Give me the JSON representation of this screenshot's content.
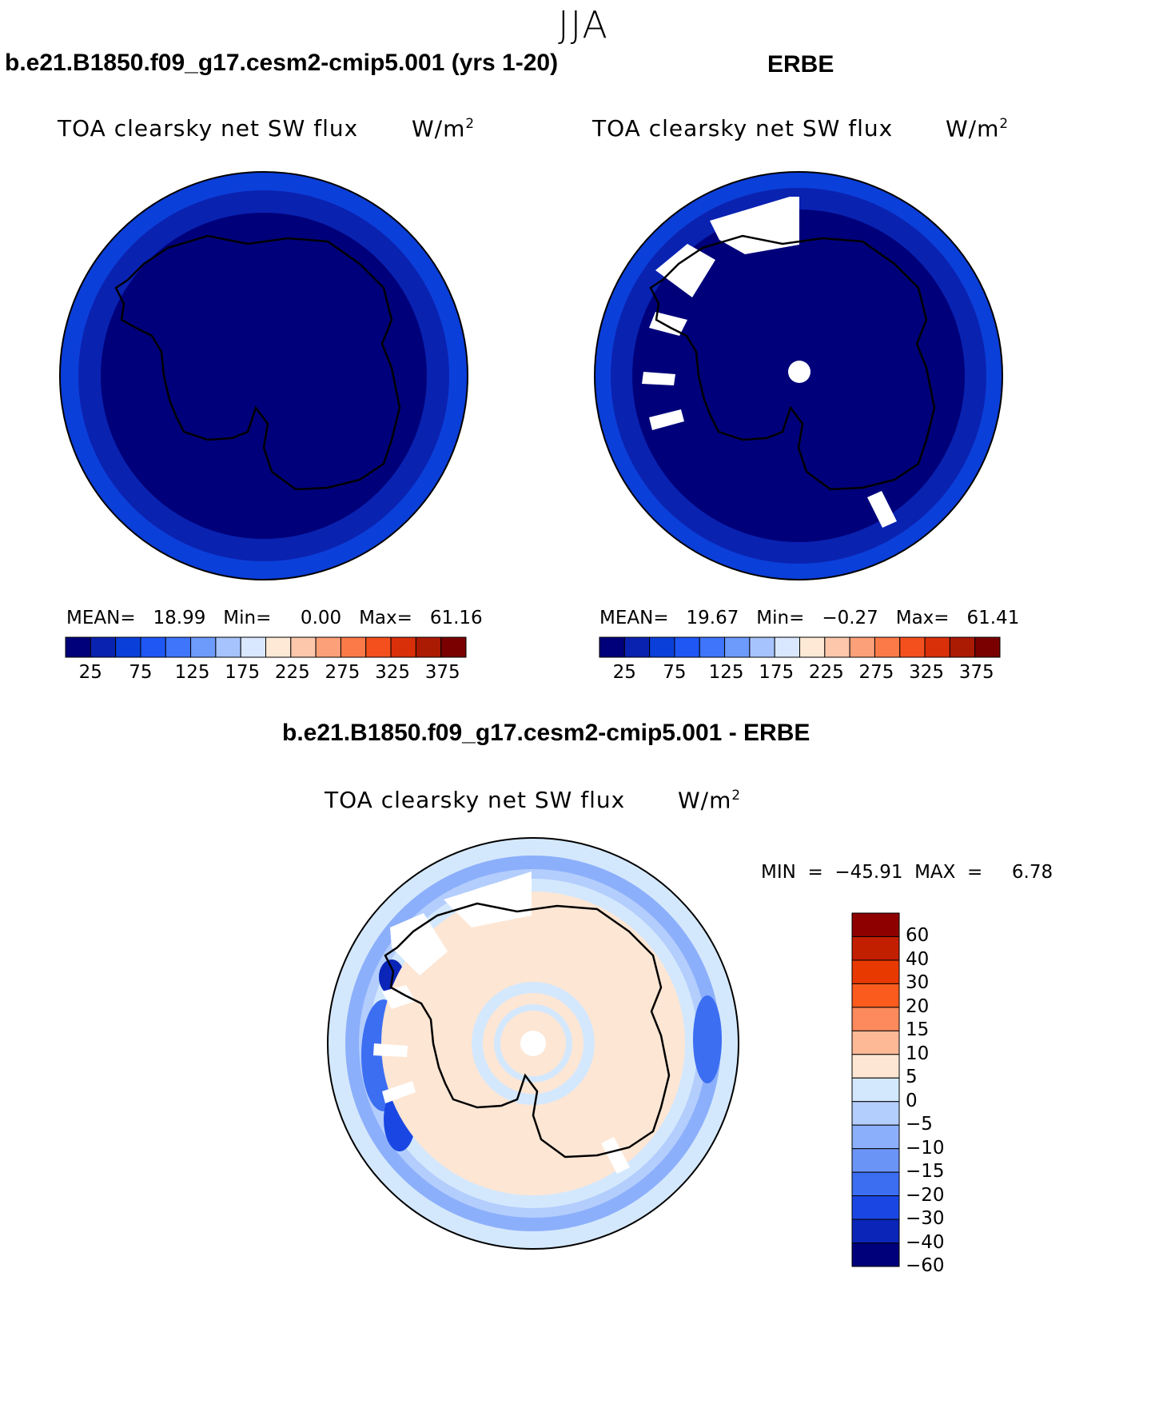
{
  "figure": {
    "season": "JJA",
    "diff_title": "b.e21.B1850.f09_g17.cesm2-cmip5.001 - ERBE"
  },
  "panels": [
    {
      "title": "b.e21.B1850.f09_g17.cesm2-cmip5.001 (yrs 1-20)",
      "field": "TOA clearsky net SW flux",
      "units": "W/m",
      "units_exp": "2",
      "stats": "MEAN=   18.99   Min=     0.00   Max=   61.16"
    },
    {
      "title": "ERBE",
      "field": "TOA clearsky net SW flux",
      "units": "W/m",
      "units_exp": "2",
      "stats": "MEAN=   19.67   Min=   −0.27   Max=   61.41"
    },
    {
      "field": "TOA clearsky net SW flux",
      "units": "W/m",
      "units_exp": "2",
      "stats": "MIN  =  −45.91  MAX  =     6.78"
    }
  ],
  "horizontal_colorbar": {
    "colors": [
      "#00007a",
      "#0a22b0",
      "#0b3fd9",
      "#1f57f5",
      "#3e75fb",
      "#6d9bfc",
      "#a6c3fd",
      "#d9e8fe",
      "#fde9d6",
      "#fdc7ab",
      "#fca079",
      "#fb7a48",
      "#f3501e",
      "#d93009",
      "#ab1a02",
      "#7a0000"
    ],
    "tick_labels": [
      "25",
      "75",
      "125",
      "175",
      "225",
      "275",
      "325",
      "375"
    ]
  },
  "vertical_colorbar": {
    "colors": [
      "#8e0000",
      "#c21e00",
      "#e83a00",
      "#fb5c1e",
      "#fd8a5c",
      "#fdb996",
      "#fde6d4",
      "#d4e8fd",
      "#b3cdfd",
      "#8caffb",
      "#6b94f7",
      "#3c6ef2",
      "#1a47e3",
      "#0a25b8",
      "#00007a"
    ],
    "tick_labels": [
      "60",
      "40",
      "30",
      "20",
      "15",
      "10",
      "5",
      "0",
      "−5",
      "−10",
      "−15",
      "−20",
      "−30",
      "−40",
      "−60"
    ]
  }
}
